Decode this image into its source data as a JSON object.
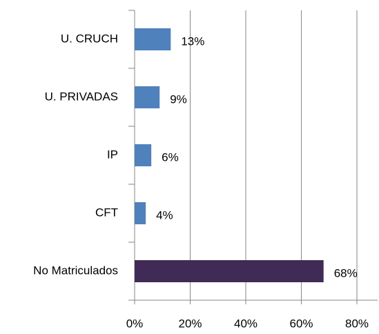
{
  "chart_data": {
    "type": "hbar",
    "categories": [
      "U. CRUCH",
      "U. PRIVADAS",
      "IP",
      "CFT",
      "No Matriculados"
    ],
    "values": [
      13,
      9,
      6,
      4,
      68
    ],
    "value_labels": [
      "13%",
      "9%",
      "6%",
      "4%",
      "68%"
    ],
    "colors": [
      "#4f81bd",
      "#4f81bd",
      "#4f81bd",
      "#4f81bd",
      "#3f2b55"
    ],
    "xlim": [
      0,
      80
    ],
    "xticks": [
      {
        "value": 0,
        "label": "0%"
      },
      {
        "value": 20,
        "label": "20%"
      },
      {
        "value": 40,
        "label": "40%"
      },
      {
        "value": 60,
        "label": "60%"
      },
      {
        "value": 80,
        "label": "80%"
      }
    ],
    "grid": true
  }
}
